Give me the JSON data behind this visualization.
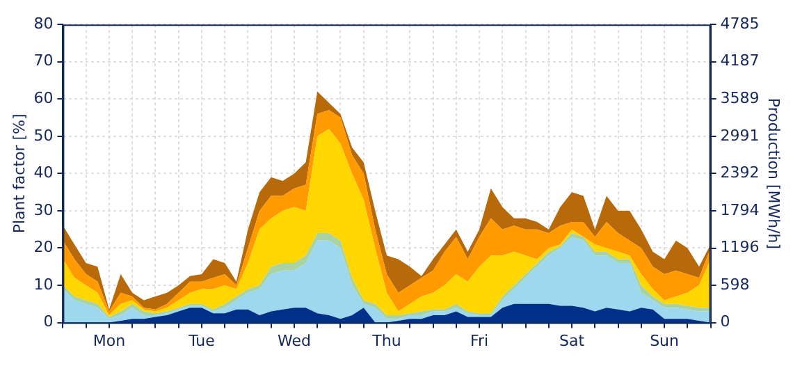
{
  "chart_data": {
    "type": "area",
    "stacked": true,
    "grid": true,
    "legend": false,
    "ylabel": "Plant factor [%]",
    "y2label": "Production [MWh/h]",
    "categories": [
      null,
      null,
      null,
      null,
      "Mon",
      null,
      null,
      null,
      null,
      null,
      null,
      null,
      "Tue",
      null,
      null,
      null,
      null,
      null,
      null,
      null,
      "Wed",
      null,
      null,
      null,
      null,
      null,
      null,
      null,
      "Thu",
      null,
      null,
      null,
      null,
      null,
      null,
      null,
      "Fri",
      null,
      null,
      null,
      null,
      null,
      null,
      null,
      "Sat",
      null,
      null,
      null,
      null,
      null,
      null,
      null,
      "Sun",
      null,
      null,
      null,
      null
    ],
    "ylim": [
      0,
      80
    ],
    "yticks": [
      0,
      10,
      20,
      30,
      40,
      50,
      60,
      70,
      80
    ],
    "y2lim": [
      0,
      4785
    ],
    "y2ticks": [
      0,
      598,
      1196,
      1794,
      2392,
      2991,
      3589,
      4187,
      4785
    ],
    "series": [
      {
        "color": "#003087",
        "values": [
          0,
          0,
          0,
          0,
          0,
          0.5,
          1,
          1,
          1.5,
          2,
          3,
          4,
          4,
          2.5,
          2.5,
          3.5,
          3.5,
          2,
          3,
          3.5,
          4,
          4,
          2.5,
          2,
          1,
          2,
          4,
          0,
          0,
          0.5,
          1,
          1,
          2,
          2,
          3,
          1.5,
          1.5,
          1.5,
          4,
          5,
          5,
          5,
          5,
          4.5,
          4.5,
          4,
          3,
          4,
          3.5,
          3,
          4,
          3.5,
          1,
          1,
          1,
          0.5,
          0
        ]
      },
      {
        "color": "#9dd8ee",
        "values": [
          9,
          6,
          5,
          4,
          1,
          1.5,
          3,
          1,
          0.5,
          0.5,
          0.5,
          0.5,
          0.5,
          0.5,
          1.5,
          2.5,
          4.5,
          7,
          10,
          10.5,
          10,
          12,
          19.5,
          20,
          19,
          8,
          1,
          4,
          1,
          0.5,
          1,
          1,
          1,
          1,
          1,
          1,
          0.5,
          0.5,
          2,
          4,
          7,
          10,
          13,
          15.5,
          18.5,
          18,
          15,
          14,
          12.5,
          13,
          4,
          2.5,
          3,
          3,
          2.5,
          2.5,
          3
        ]
      },
      {
        "color": "#a9d3a3",
        "values": [
          1,
          1,
          1,
          1,
          0.5,
          1,
          1,
          1,
          0.5,
          0.5,
          0.5,
          0.5,
          0.5,
          0.5,
          1,
          1,
          1,
          1,
          2,
          2,
          2,
          2,
          2,
          2,
          2,
          2,
          1,
          1,
          1,
          1,
          0.5,
          1,
          0.5,
          0.5,
          1,
          0.5,
          0.5,
          0.5,
          1,
          1,
          1,
          1,
          1,
          0.5,
          1,
          1,
          1,
          1,
          1,
          1,
          2,
          1,
          1,
          1,
          1,
          1,
          1
        ]
      },
      {
        "color": "#ffd600",
        "values": [
          7,
          5,
          4,
          3,
          0.5,
          2,
          1,
          0.5,
          0.5,
          1,
          2,
          3,
          4,
          5.5,
          5,
          2,
          7,
          15,
          13,
          14,
          15,
          12,
          26,
          28,
          26,
          28,
          27,
          15,
          6,
          1,
          2.5,
          4,
          4.5,
          6.5,
          8,
          8,
          12.5,
          15.5,
          11,
          9,
          5,
          1,
          1,
          0.5,
          1,
          0,
          2,
          1,
          2,
          1,
          3,
          2,
          1,
          2,
          3.5,
          6,
          13
        ]
      },
      {
        "color": "#ff9a00",
        "values": [
          5,
          5,
          3,
          3,
          1,
          3,
          1,
          0.5,
          0.5,
          1,
          2,
          3,
          2,
          3,
          3,
          1,
          4,
          5,
          6,
          4,
          5,
          7,
          6,
          5,
          7,
          5,
          7,
          5,
          5,
          5,
          5,
          5,
          6,
          9,
          10,
          6,
          8,
          10,
          7,
          7,
          7,
          8,
          4,
          5,
          2,
          4,
          2,
          7,
          5,
          4,
          7,
          6,
          7,
          7,
          5,
          2,
          3
        ]
      },
      {
        "color": "#b8690a",
        "values": [
          4,
          4,
          3,
          4,
          0.5,
          5,
          1,
          2,
          3.5,
          3,
          2,
          1.5,
          2,
          5,
          3,
          1,
          5,
          5,
          5,
          4,
          4,
          6,
          6,
          2,
          1,
          2,
          3,
          5,
          5,
          9,
          5,
          0.5,
          3,
          2,
          2,
          2,
          2,
          8,
          6,
          2,
          3,
          2,
          1,
          5,
          8,
          7,
          2,
          7,
          6,
          8,
          5,
          4,
          4,
          8,
          7,
          3,
          1
        ]
      }
    ]
  }
}
